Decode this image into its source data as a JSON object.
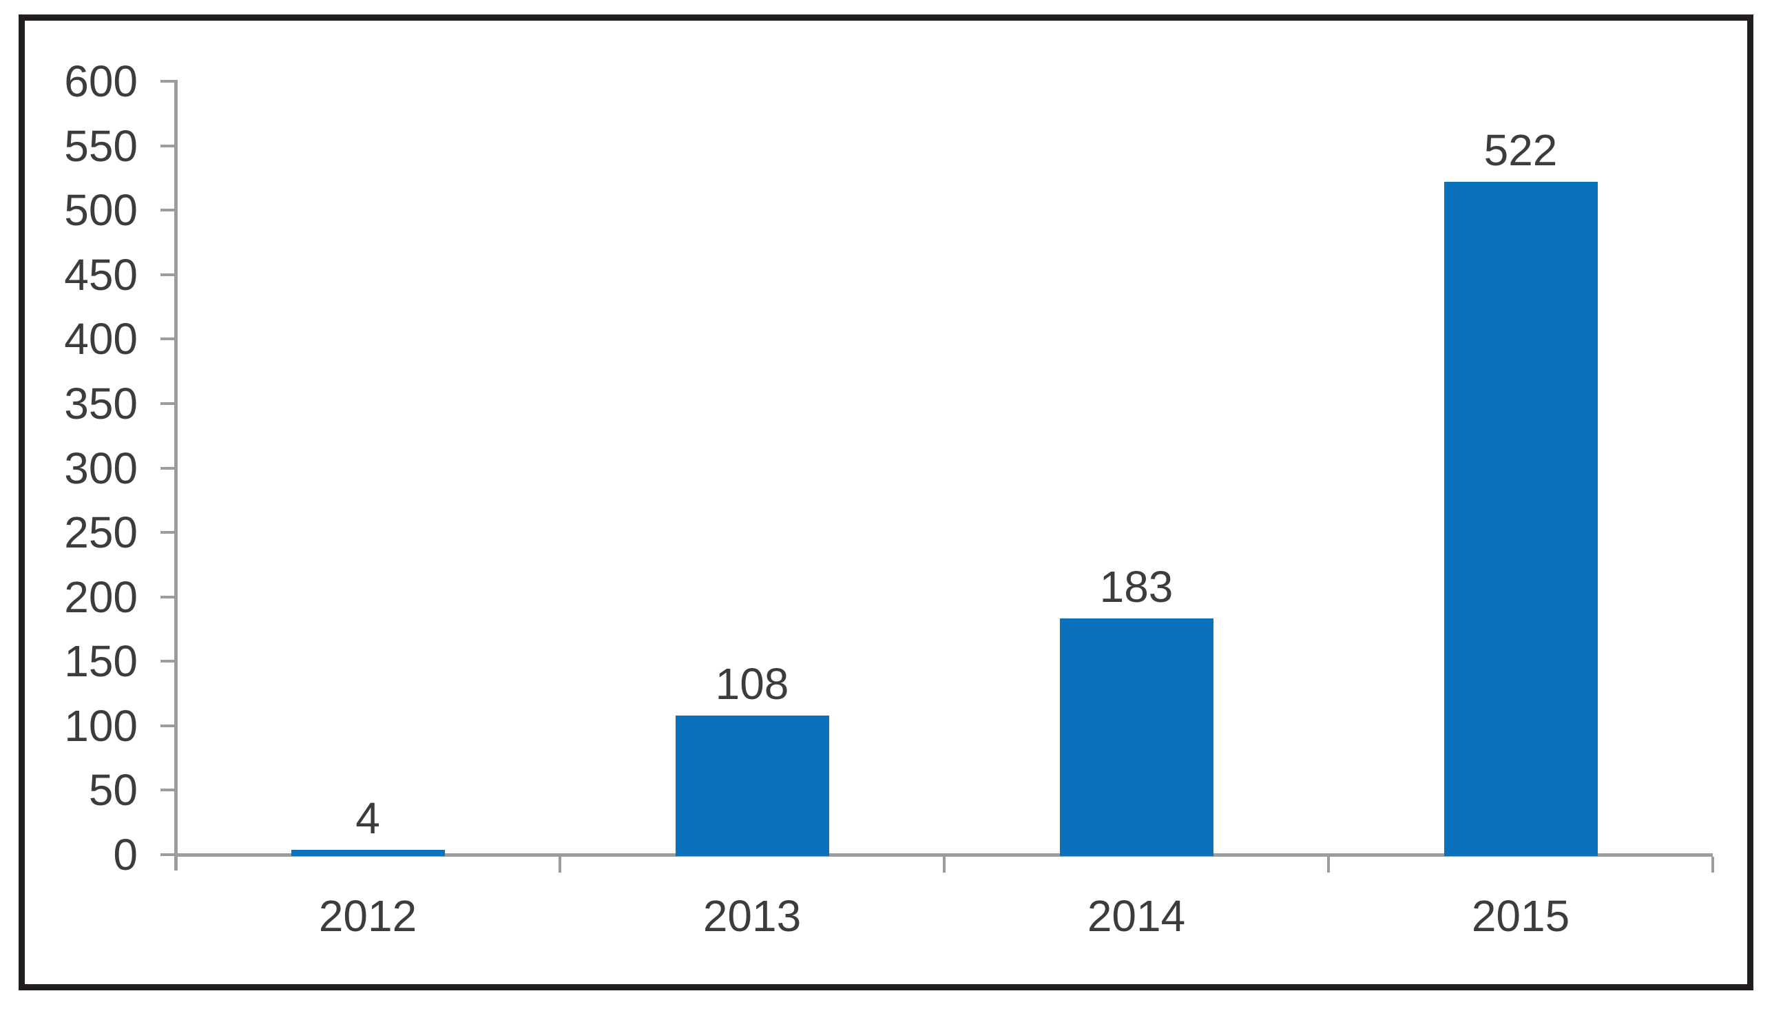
{
  "figure": {
    "border_color": "#221e1f",
    "background_color": "#ffffff"
  },
  "chart_data": {
    "type": "bar",
    "title": "",
    "xlabel": "",
    "ylabel": "",
    "categories": [
      "2012",
      "2013",
      "2014",
      "2015"
    ],
    "values": [
      4,
      108,
      183,
      522
    ],
    "data_labels": [
      "4",
      "108",
      "183",
      "522"
    ],
    "ylim": [
      0,
      600
    ],
    "ytick_step": 50,
    "y_tick_labels": [
      "0",
      "50",
      "100",
      "150",
      "200",
      "250",
      "300",
      "350",
      "400",
      "450",
      "500",
      "550",
      "600"
    ],
    "grid": "off",
    "legend": "none",
    "bar_color": "#0a71bc",
    "axis_color": "#9c9c9c",
    "text_color": "#3c3c3c"
  }
}
